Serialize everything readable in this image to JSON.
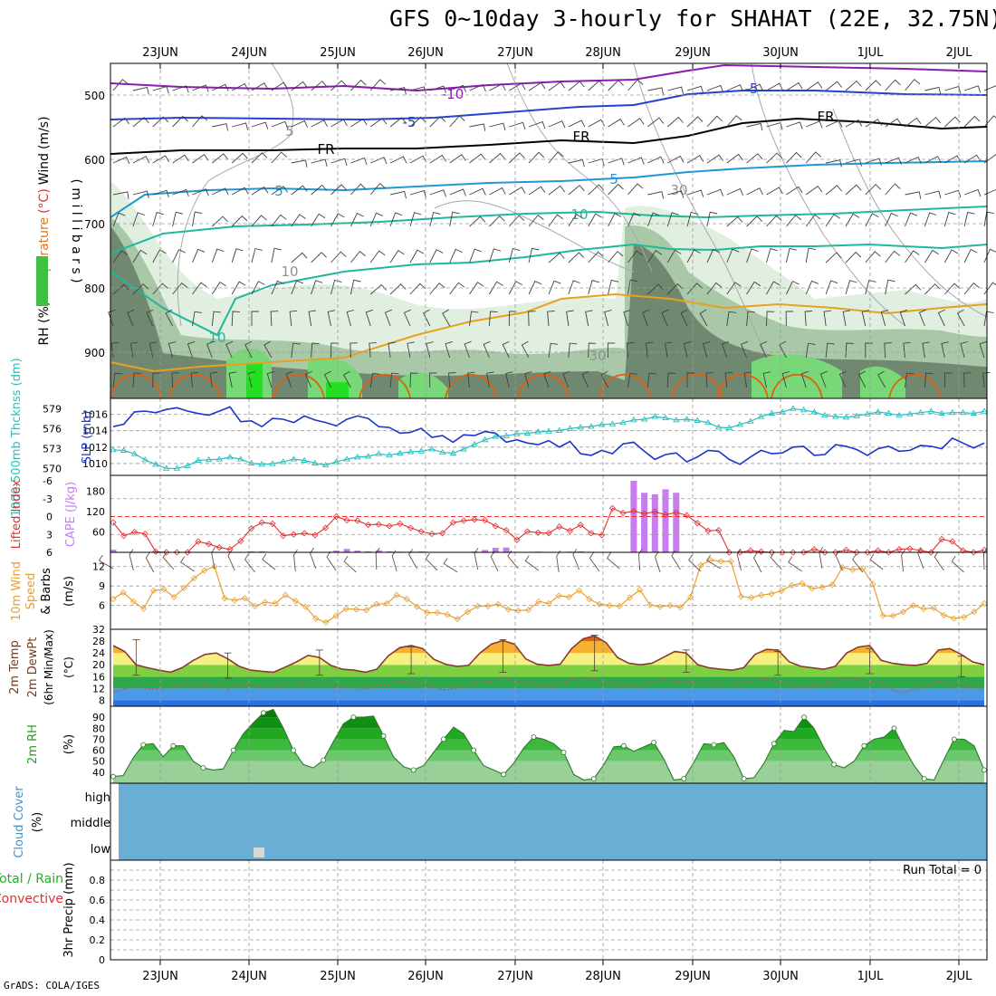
{
  "title": "GFS 0~10day 3-hourly for SHAHAT (22E, 32.75N)",
  "credit": "GrADS: COLA/IGES",
  "colors": {
    "wind_barb": "#404040",
    "temperature_purple": "#8a1ab0",
    "temperature_blue": "#2244cc",
    "temperature_fr": "#000000",
    "temperature_light_blue": "#1f97d6",
    "temperature_teal": "#1fb89a",
    "temperature_orange": "#e8a020",
    "temperature_dark_orange": "#e06010",
    "rh_light": "#e0efe0",
    "rh_mid": "#a8c8a8",
    "rh_dark": "#708870",
    "rh_bright": "#78d878",
    "rh_brightest": "#20e020",
    "slp": "#1a35c8",
    "thickness": "#2bbfbf",
    "lifted_index": "#e03030",
    "cape": "#c77cf0",
    "wind_speed": "#e8a030",
    "temp_line": "#8b3a2e",
    "dewpoint_line": "#c05050",
    "rh2m": "#22a022",
    "cloud_fill": "#6aaed6",
    "cloud_gap": "#d8d8d8"
  },
  "chart_data": [
    {
      "id": "upper-air",
      "type": "contour",
      "ylabel_parts": [
        "RH (%)",
        "Temperature",
        "(°C)",
        "Wind",
        "(m/s)"
      ],
      "axis_units": "( m i l l i b a r s )",
      "yticks": [
        500,
        600,
        700,
        800,
        900
      ],
      "xticks": [
        "23JUN",
        "24JUN",
        "25JUN",
        "26JUN",
        "27JUN",
        "28JUN",
        "29JUN",
        "30JUN",
        "1JUL",
        "2JUL"
      ],
      "contour_labels": [
        "-10",
        "-5",
        "-5",
        "FR",
        "FR",
        "FR",
        "5",
        "5",
        "10",
        "10",
        "5",
        "10",
        "30",
        "30"
      ]
    },
    {
      "id": "slp-thickness",
      "type": "line",
      "ylabel_left": "1000-500mb Thcknss (dm)",
      "ylabel_right": "SLP (mb)",
      "yticks_thickness": [
        579,
        576,
        573,
        570
      ],
      "yticks_slp": [
        1016,
        1014,
        1012,
        1010
      ],
      "slp": [
        1014.5,
        1014.8,
        1016.3,
        1016.4,
        1016.2,
        1016.6,
        1016.8,
        1016.4,
        1016.1,
        1015.9,
        1016.4,
        1016.9,
        1015.1,
        1015.2,
        1014.5,
        1015.5,
        1015.4,
        1015.0,
        1015.8,
        1015.3,
        1015.0,
        1014.6,
        1015.4,
        1015.8,
        1015.5,
        1014.5,
        1014.4,
        1013.7,
        1013.8,
        1014.3,
        1013.2,
        1013.4,
        1012.6,
        1013.5,
        1013.4,
        1013.9,
        1013.7,
        1012.6,
        1012.9,
        1012.5,
        1012.3,
        1012.8,
        1012.0,
        1012.7,
        1011.2,
        1011.0,
        1011.6,
        1011.2,
        1012.4,
        1012.6,
        1011.5,
        1010.5,
        1011.1,
        1011.3,
        1010.2,
        1010.8,
        1011.6,
        1011.5,
        1010.5,
        1009.9,
        1010.8,
        1011.6,
        1011.2,
        1011.3,
        1012.0,
        1012.1,
        1011.0,
        1011.1,
        1012.3,
        1012.1,
        1011.7,
        1011.0,
        1011.8,
        1012.1,
        1011.5,
        1011.6,
        1012.2,
        1012.1,
        1011.8,
        1013.1,
        1012.5,
        1011.9,
        1012.5
      ],
      "thickness": [
        572.8,
        572.7,
        572.2,
        571.3,
        570.6,
        570.0,
        570.0,
        570.4,
        571.2,
        571.3,
        571.4,
        571.7,
        571.4,
        570.8,
        570.6,
        570.7,
        571.0,
        571.4,
        571.2,
        570.8,
        570.5,
        571.0,
        571.4,
        571.7,
        571.8,
        572.2,
        572.0,
        572.3,
        572.5,
        572.6,
        572.9,
        572.4,
        572.3,
        572.9,
        573.6,
        574.3,
        574.8,
        574.9,
        575.2,
        575.3,
        575.5,
        575.6,
        575.7,
        576.0,
        576.2,
        576.3,
        576.6,
        576.7,
        576.9,
        577.3,
        577.4,
        577.8,
        577.6,
        577.3,
        577.4,
        577.2,
        576.9,
        576.2,
        576.1,
        576.6,
        577.1,
        577.8,
        578.3,
        578.5,
        579.0,
        578.8,
        578.5,
        578.0,
        577.8,
        577.7,
        577.9,
        578.2,
        578.5,
        578.3,
        578.0,
        578.2,
        578.4,
        578.6,
        578.3,
        578.4,
        578.4,
        578.3,
        578.6
      ]
    },
    {
      "id": "stability",
      "type": "bar+line",
      "ylabel_left": "Lifted Index",
      "ylabel_right": "CAPE (J/kg)",
      "yticks_li": [
        -6,
        -3,
        0,
        3,
        6
      ],
      "yticks_cape": [
        180,
        120,
        60
      ],
      "lifted_index": [
        1.0,
        3.2,
        2.6,
        2.9,
        5.9,
        6.0,
        6.0,
        6.0,
        4.2,
        4.6,
        5.2,
        5.5,
        4.1,
        2.0,
        1.0,
        1.2,
        3.2,
        3.0,
        2.8,
        3.1,
        1.9,
        0.0,
        0.6,
        0.7,
        1.4,
        1.3,
        1.6,
        1.2,
        1.9,
        2.5,
        2.9,
        2.8,
        1.0,
        0.7,
        0.5,
        0.6,
        1.6,
        2.3,
        3.9,
        2.5,
        2.7,
        2.8,
        1.7,
        2.4,
        1.4,
        2.8,
        3.1,
        -1.4,
        -0.6,
        -0.9,
        -0.5,
        -0.8,
        -0.3,
        -0.7,
        -0.2,
        1.1,
        2.4,
        2.3,
        6.0,
        6.0,
        5.7,
        5.9,
        6.0,
        6.0,
        6.0,
        6.0,
        5.5,
        6.0,
        6.0,
        5.6,
        6.0,
        6.0,
        5.7,
        6.0,
        5.5,
        5.4,
        5.7,
        6.0,
        3.8,
        4.2,
        5.7,
        6.0,
        5.6
      ],
      "cape": [
        8,
        0,
        0,
        0,
        0,
        0,
        0,
        0,
        0,
        0,
        0,
        0,
        0,
        3,
        3,
        0,
        0,
        0,
        0,
        0,
        0,
        5,
        10,
        5,
        3,
        6,
        3,
        2,
        2,
        3,
        0,
        0,
        0,
        0,
        2,
        7,
        13,
        14,
        0,
        0,
        2,
        0,
        0,
        2,
        3,
        0,
        0,
        0,
        0,
        210,
        175,
        170,
        185,
        175,
        0,
        0,
        0,
        0,
        0,
        0,
        0,
        0,
        0,
        0,
        0,
        0,
        0,
        0,
        0,
        0,
        0,
        0,
        0,
        0,
        0,
        0,
        0,
        0,
        0,
        0,
        0,
        0,
        0
      ]
    },
    {
      "id": "wind10m",
      "type": "line",
      "ylabel": "10m Wind Speed & Barbs (m/s)",
      "ylabel_parts": [
        "10m Wind",
        "Speed",
        "& Barbs",
        "(m/s)"
      ],
      "yticks": [
        12,
        9,
        6
      ],
      "speed": [
        7.0,
        8.0,
        6.6,
        5.5,
        8.3,
        8.5,
        7.3,
        8.7,
        10.2,
        11.4,
        12.0,
        7.1,
        6.8,
        7.1,
        5.9,
        6.5,
        6.3,
        7.6,
        6.7,
        5.8,
        4.0,
        3.4,
        4.4,
        5.5,
        5.4,
        5.3,
        6.2,
        6.3,
        7.6,
        7.0,
        5.8,
        4.9,
        4.9,
        4.6,
        3.9,
        5.0,
        5.9,
        5.9,
        6.2,
        5.4,
        5.2,
        5.3,
        6.6,
        6.3,
        7.5,
        7.3,
        8.3,
        7.0,
        6.2,
        6.0,
        5.9,
        7.2,
        8.4,
        6.1,
        5.8,
        6.0,
        5.7,
        7.3,
        12.2,
        13.0,
        12.8,
        12.8,
        7.4,
        7.2,
        7.6,
        7.8,
        8.3,
        9.1,
        9.4,
        8.6,
        8.8,
        9.2,
        11.9,
        11.5,
        11.7,
        9.3,
        4.4,
        4.4,
        5.0,
        6.0,
        5.5,
        5.6,
        4.5,
        4.0,
        4.2,
        5.0,
        6.3
      ]
    },
    {
      "id": "temp2m",
      "type": "area+line",
      "ylabel_parts": [
        "2m Temp",
        "2m DewPt",
        "(6hr Min/Max)",
        "(°C)"
      ],
      "yticks": [
        32,
        28,
        24,
        20,
        16,
        12,
        8
      ],
      "temp": [
        26.5,
        24.5,
        20.0,
        19.0,
        18.2,
        17.5,
        19.0,
        21.5,
        23.5,
        24.0,
        22.0,
        19.5,
        18.2,
        17.8,
        17.5,
        19.2,
        21.0,
        23.2,
        22.5,
        19.8,
        18.5,
        18.2,
        17.5,
        18.5,
        23.0,
        25.8,
        26.5,
        25.5,
        21.8,
        20.2,
        19.5,
        19.8,
        24.0,
        27.0,
        28.2,
        27.0,
        22.0,
        20.2,
        19.8,
        20.2,
        25.5,
        28.8,
        29.8,
        27.5,
        22.5,
        20.5,
        20.0,
        20.5,
        22.5,
        24.5,
        24.0,
        20.0,
        19.0,
        18.5,
        18.2,
        19.0,
        23.5,
        25.2,
        25.0,
        21.0,
        19.5,
        19.0,
        18.5,
        19.5,
        24.0,
        26.0,
        26.5,
        21.5,
        20.5,
        20.0,
        19.8,
        20.5,
        25.0,
        25.5,
        23.5,
        21.0,
        20.0
      ],
      "dewpoint": [
        10.5,
        12.0,
        12.5,
        12.0,
        11.8,
        12.5,
        13.0,
        13.5,
        13.2,
        13.5,
        12.0,
        13.0,
        13.2,
        12.5,
        12.2,
        13.5,
        13.5,
        14.0,
        14.2,
        12.8,
        12.5,
        12.2,
        12.0,
        13.0,
        13.2,
        14.5,
        14.0,
        13.0,
        12.5,
        11.5,
        12.2,
        13.0,
        14.2,
        14.5,
        15.5,
        14.5,
        14.0,
        13.5,
        13.0,
        13.8,
        15.0,
        15.5,
        15.0,
        14.0,
        13.5,
        13.0,
        13.0,
        14.0,
        15.0,
        14.5,
        14.5,
        14.2,
        14.0,
        13.5,
        13.5,
        14.0,
        14.8,
        15.0,
        14.5,
        13.5,
        12.5,
        13.0,
        13.5,
        14.5,
        15.5,
        15.0,
        14.5,
        14.0,
        11.5,
        10.5,
        12.0,
        13.0,
        14.5,
        13.5,
        12.8,
        12.5,
        12.0
      ],
      "max": [
        28.5,
        24.0,
        25.0,
        26.0,
        28.5,
        30.0,
        25.0,
        24.5,
        25.5,
        23.0
      ],
      "min": [
        16.5,
        15.5,
        16.5,
        17.0,
        17.5,
        18.0,
        17.5,
        16.5,
        17.0,
        16.0
      ]
    },
    {
      "id": "rh2m",
      "type": "area",
      "ylabel_parts": [
        "2m RH",
        "(%)"
      ],
      "yticks": [
        90,
        80,
        70,
        60,
        50,
        40
      ],
      "rh": [
        36,
        37,
        53,
        65,
        66,
        54,
        64,
        64,
        50,
        44,
        42,
        43,
        60,
        75,
        85,
        94,
        97,
        80,
        60,
        47,
        44,
        51,
        68,
        84,
        90,
        90,
        91,
        73,
        54,
        45,
        42,
        46,
        58,
        70,
        81,
        75,
        60,
        46,
        42,
        38,
        48,
        62,
        72,
        70,
        66,
        58,
        38,
        33,
        34,
        47,
        63,
        64,
        59,
        63,
        67,
        52,
        33,
        34,
        49,
        66,
        65,
        67,
        54,
        34,
        35,
        48,
        66,
        78,
        77,
        90,
        80,
        62,
        47,
        44,
        50,
        64,
        70,
        72,
        80,
        62,
        46,
        34,
        33,
        52,
        70,
        70,
        64,
        42
      ]
    },
    {
      "id": "cloud",
      "type": "bar",
      "ylabel_parts": [
        "Cloud Cover",
        "(%)"
      ],
      "levels": [
        "high",
        "middle",
        "low"
      ]
    },
    {
      "id": "precip",
      "type": "bar",
      "ylabel_parts": [
        "3hr Precip (mm)",
        "Total / Rain",
        "Convective"
      ],
      "yticks": [
        "0.8",
        "0.6",
        "0.4",
        "0.2",
        "0"
      ],
      "ylim": [
        0,
        1.0
      ],
      "run_total_label": "Run Total = 0",
      "values": []
    }
  ]
}
